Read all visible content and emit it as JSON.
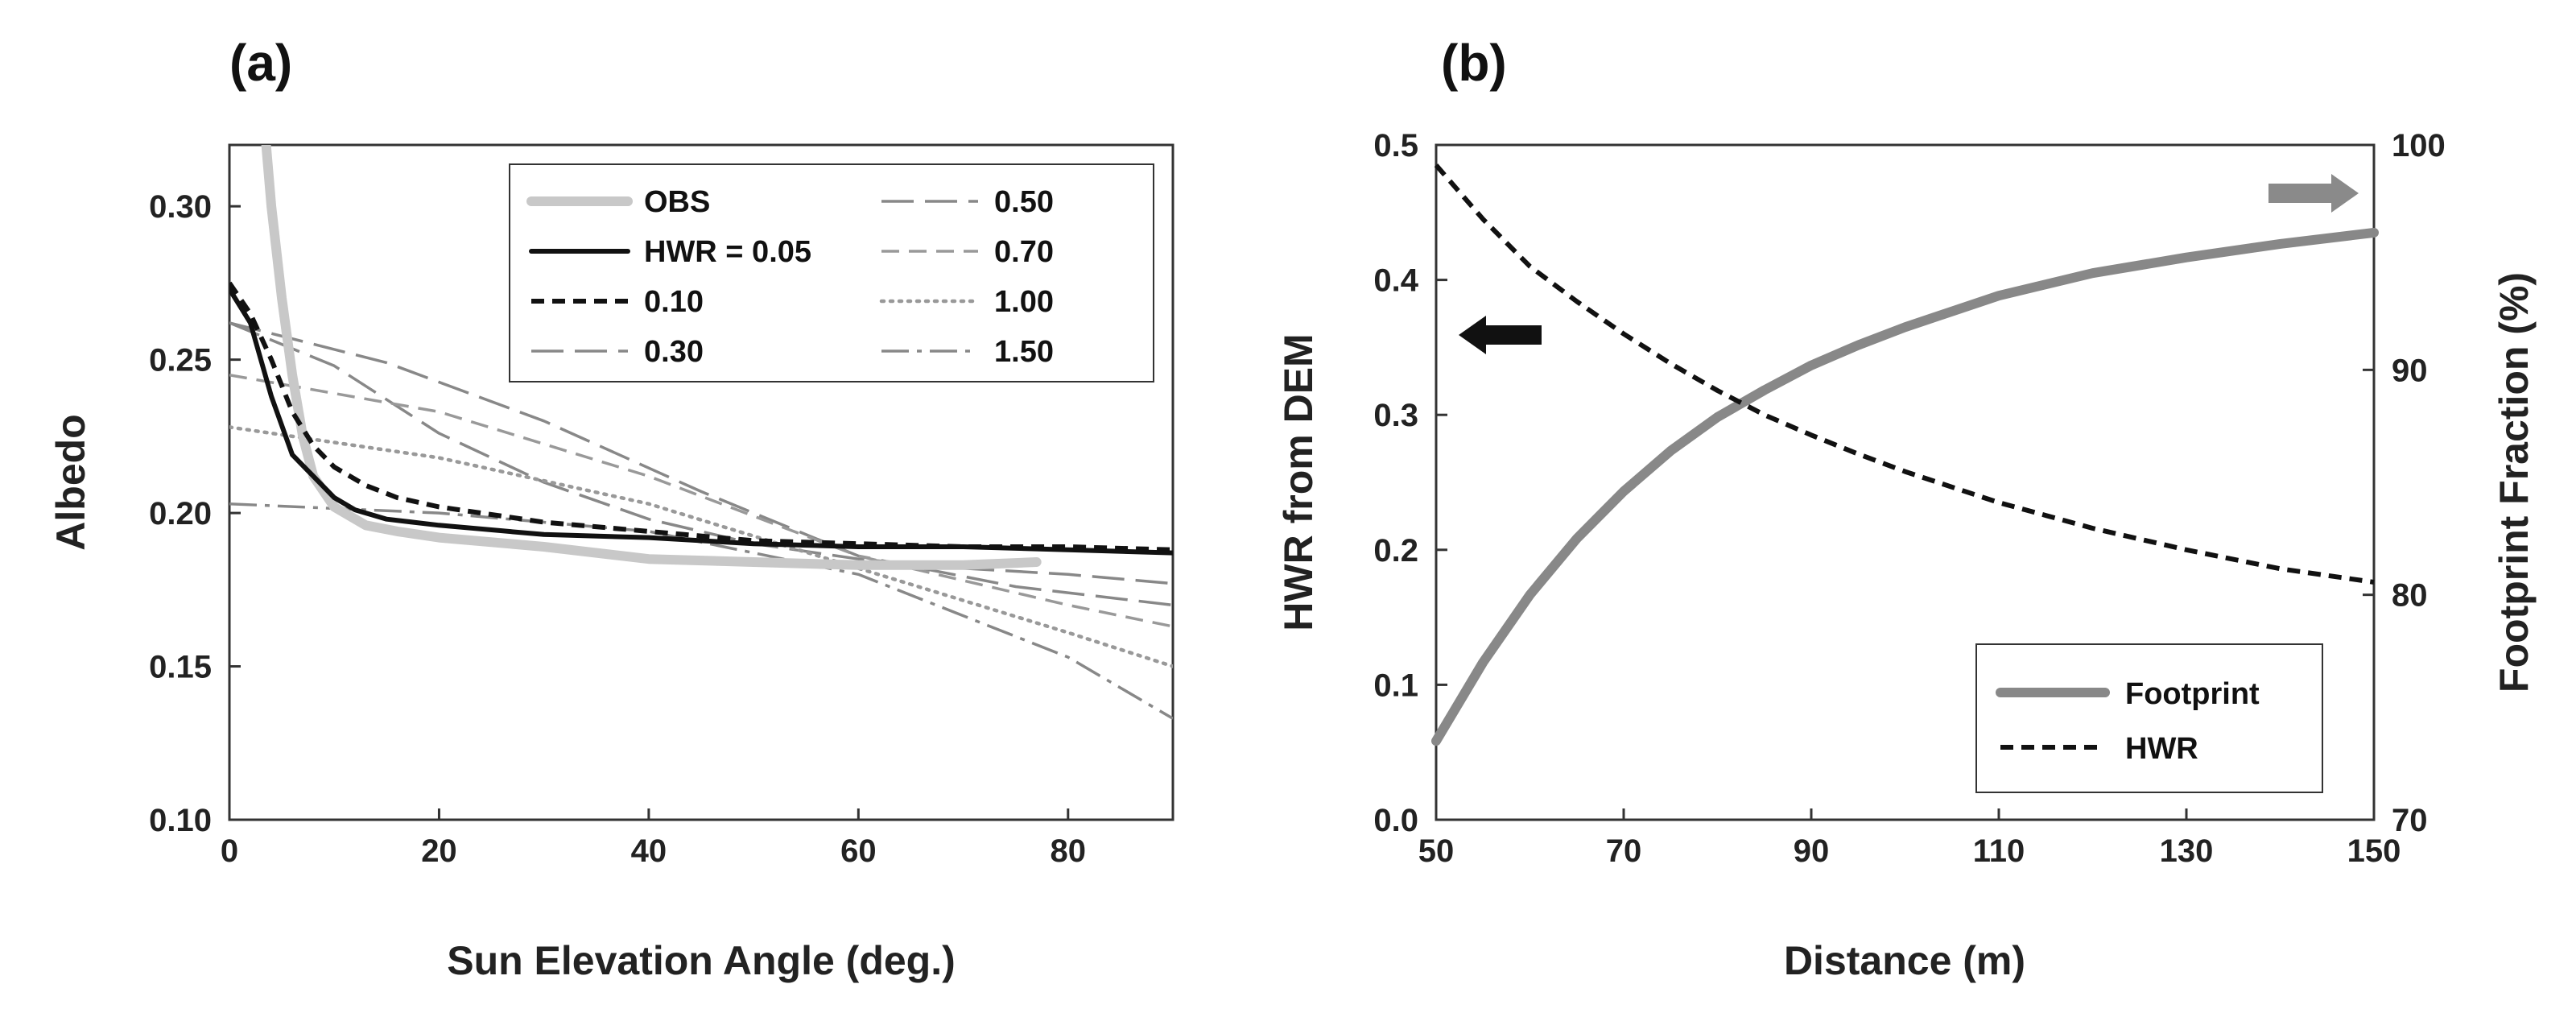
{
  "chart_data": [
    {
      "panel": "(a)",
      "type": "line",
      "xlabel": "Sun Elevation Angle (deg.)",
      "ylabel": "Albedo",
      "xlim": [
        0,
        90
      ],
      "ylim": [
        0.1,
        0.32
      ],
      "xticks": [
        "0",
        "20",
        "40",
        "60",
        "80"
      ],
      "yticks": [
        "0.10",
        "0.15",
        "0.20",
        "0.25",
        "0.30"
      ],
      "grid": false,
      "legend_position": "top-right",
      "series": [
        {
          "name": "OBS",
          "color": "#c8c8c8",
          "style": "solid-thick",
          "x": [
            3.5,
            4,
            5,
            6,
            7,
            8,
            10,
            13,
            16,
            20,
            30,
            40,
            50,
            60,
            70,
            77
          ],
          "y": [
            0.32,
            0.3,
            0.27,
            0.245,
            0.225,
            0.212,
            0.202,
            0.196,
            0.194,
            0.192,
            0.189,
            0.185,
            0.184,
            0.183,
            0.183,
            0.184
          ]
        },
        {
          "name": "HWR = 0.05",
          "color": "#111111",
          "style": "solid",
          "x": [
            0,
            2,
            4,
            6,
            8,
            10,
            12,
            15,
            20,
            30,
            40,
            50,
            60,
            70,
            80,
            90
          ],
          "y": [
            0.273,
            0.262,
            0.238,
            0.219,
            0.212,
            0.205,
            0.201,
            0.198,
            0.196,
            0.193,
            0.192,
            0.19,
            0.189,
            0.189,
            0.188,
            0.187
          ]
        },
        {
          "name": "0.10",
          "color": "#111111",
          "style": "dashed",
          "x": [
            0,
            2,
            4,
            6,
            8,
            10,
            13,
            16,
            20,
            30,
            40,
            50,
            60,
            70,
            80,
            90
          ],
          "y": [
            0.275,
            0.265,
            0.25,
            0.233,
            0.222,
            0.215,
            0.209,
            0.205,
            0.202,
            0.197,
            0.194,
            0.191,
            0.19,
            0.189,
            0.189,
            0.188
          ]
        },
        {
          "name": "0.30",
          "color": "#888888",
          "style": "long-dash",
          "x": [
            0,
            10,
            20,
            30,
            40,
            50,
            60,
            70,
            80,
            90
          ],
          "y": [
            0.262,
            0.248,
            0.226,
            0.21,
            0.198,
            0.19,
            0.185,
            0.182,
            0.18,
            0.177
          ]
        },
        {
          "name": "0.50",
          "color": "#888888",
          "style": "long-dash",
          "x": [
            0,
            15,
            30,
            45,
            60,
            75,
            90
          ],
          "y": [
            0.262,
            0.249,
            0.23,
            0.207,
            0.186,
            0.176,
            0.17
          ]
        },
        {
          "name": "0.70",
          "color": "#999999",
          "style": "short-dash",
          "x": [
            0,
            20,
            40,
            60,
            80,
            90
          ],
          "y": [
            0.245,
            0.233,
            0.212,
            0.186,
            0.17,
            0.163
          ]
        },
        {
          "name": "1.00",
          "color": "#999999",
          "style": "dotted",
          "x": [
            0,
            20,
            40,
            60,
            80,
            90
          ],
          "y": [
            0.228,
            0.218,
            0.203,
            0.182,
            0.161,
            0.15
          ]
        },
        {
          "name": "1.50",
          "color": "#888888",
          "style": "dash-dot",
          "x": [
            0,
            20,
            40,
            60,
            80,
            90
          ],
          "y": [
            0.203,
            0.2,
            0.194,
            0.18,
            0.153,
            0.133
          ]
        }
      ]
    },
    {
      "panel": "(b)",
      "type": "line",
      "xlabel": "Distance (m)",
      "ylabel": "HWR from DEM",
      "y2label": "Footprint Fraction (%)",
      "xlim": [
        50,
        150
      ],
      "ylim": [
        0,
        0.5
      ],
      "y2lim": [
        70,
        100
      ],
      "xticks": [
        "50",
        "70",
        "90",
        "110",
        "130",
        "150"
      ],
      "yticks": [
        "0.0",
        "0.1",
        "0.2",
        "0.3",
        "0.4",
        "0.5"
      ],
      "y2ticks": [
        "70",
        "80",
        "90",
        "100"
      ],
      "grid": false,
      "legend_position": "bottom-right",
      "series": [
        {
          "name": "Footprint",
          "axis": "right",
          "color": "#888888",
          "style": "solid-thick",
          "x": [
            50,
            55,
            60,
            65,
            70,
            75,
            80,
            85,
            90,
            95,
            100,
            110,
            120,
            130,
            140,
            150
          ],
          "y": [
            73.5,
            77.0,
            80.0,
            82.5,
            84.6,
            86.4,
            87.9,
            89.1,
            90.2,
            91.1,
            91.9,
            93.3,
            94.3,
            95.0,
            95.6,
            96.1
          ]
        },
        {
          "name": "HWR",
          "axis": "left",
          "color": "#111111",
          "style": "dashed",
          "x": [
            50,
            55,
            60,
            65,
            70,
            75,
            80,
            85,
            90,
            95,
            100,
            110,
            120,
            130,
            140,
            150
          ],
          "y": [
            0.485,
            0.445,
            0.41,
            0.384,
            0.36,
            0.338,
            0.318,
            0.3,
            0.285,
            0.271,
            0.258,
            0.235,
            0.216,
            0.2,
            0.186,
            0.176
          ]
        }
      ]
    }
  ]
}
